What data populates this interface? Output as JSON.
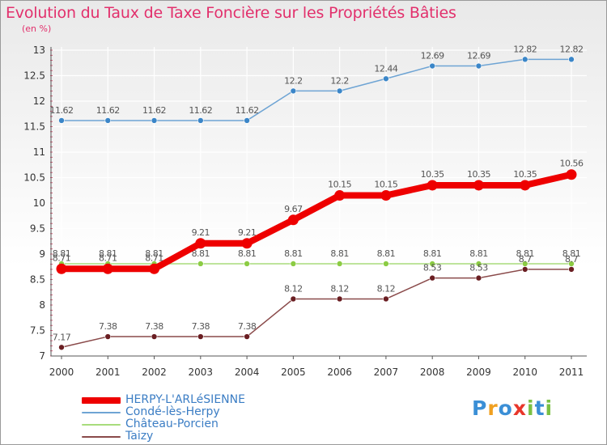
{
  "title": "Evolution du Taux de Taxe Foncière sur les Propriétés Bâties",
  "unit": "(en %)",
  "colors": {
    "title": "#e2306c",
    "axis_text": "#333333",
    "grid": "#ffffff",
    "axis": "#555555",
    "tick_minor": "#cc3355"
  },
  "chart_data": {
    "type": "line",
    "x": [
      "2000",
      "2001",
      "2002",
      "2003",
      "2004",
      "2005",
      "2006",
      "2007",
      "2008",
      "2009",
      "2010",
      "2011"
    ],
    "ylim": [
      7,
      13
    ],
    "yticks": [
      "7",
      "7.5",
      "8",
      "8.5",
      "9",
      "9.5",
      "10",
      "10.5",
      "11",
      "11.5",
      "12",
      "12.5",
      "13"
    ],
    "grid": true,
    "legend_position": "bottom-left",
    "series": [
      {
        "name": "HERPY-L'ARLéSIENNE",
        "color": "#ee0000",
        "width": 8,
        "values": [
          8.71,
          8.71,
          8.71,
          9.21,
          9.21,
          9.67,
          10.15,
          10.15,
          10.35,
          10.35,
          10.35,
          10.56
        ],
        "labels": [
          "8.71",
          "8.71",
          "8.71",
          "9.21",
          "9.21",
          "9.67",
          "10.15",
          "10.15",
          "10.35",
          "10.35",
          "10.35",
          "10.56"
        ]
      },
      {
        "name": "Condé-lès-Herpy",
        "color": "#6ea4d4",
        "point": "#3b86c8",
        "width": 1.5,
        "values": [
          11.62,
          11.62,
          11.62,
          11.62,
          11.62,
          12.2,
          12.2,
          12.44,
          12.69,
          12.69,
          12.82,
          12.82
        ],
        "labels": [
          "11.62",
          "11.62",
          "11.62",
          "11.62",
          "11.62",
          "12.2",
          "12.2",
          "12.44",
          "12.69",
          "12.69",
          "12.82",
          "12.82"
        ]
      },
      {
        "name": "Château-Porcien",
        "color": "#a8dc7c",
        "point": "#8ccc44",
        "width": 1.5,
        "values": [
          8.81,
          8.81,
          8.81,
          8.81,
          8.81,
          8.81,
          8.81,
          8.81,
          8.81,
          8.81,
          8.81,
          8.81
        ],
        "labels": [
          "8.81",
          "8.81",
          "8.81",
          "8.81",
          "8.81",
          "8.81",
          "8.81",
          "8.81",
          "8.81",
          "8.81",
          "8.81",
          "8.81"
        ]
      },
      {
        "name": "Taizy",
        "color": "#8a4a4a",
        "point": "#6a1e22",
        "width": 1.5,
        "values": [
          7.17,
          7.38,
          7.38,
          7.38,
          7.38,
          8.12,
          8.12,
          8.12,
          8.53,
          8.53,
          8.7,
          8.7
        ],
        "labels": [
          "7.17",
          "7.38",
          "7.38",
          "7.38",
          "7.38",
          "8.12",
          "8.12",
          "8.12",
          "8.53",
          "8.53",
          "8.7",
          "8.7"
        ]
      }
    ]
  },
  "legend": {
    "items": [
      {
        "label": "HERPY-L'ARLéSIENNE",
        "color": "#ee0000"
      },
      {
        "label": "Condé-lès-Herpy",
        "color": "#6ea4d4"
      },
      {
        "label": "Château-Porcien",
        "color": "#a8dc7c"
      },
      {
        "label": "Taizy",
        "color": "#8a4a4a"
      }
    ]
  },
  "brand": {
    "text": "Proxiti",
    "letters": [
      {
        "ch": "P",
        "color": "#3b8fd6"
      },
      {
        "ch": "r",
        "color": "#f0a020"
      },
      {
        "ch": "o",
        "color": "#3b8fd6"
      },
      {
        "ch": "x",
        "color": "#e8362a"
      },
      {
        "ch": "i",
        "color": "#7bc043"
      },
      {
        "ch": "t",
        "color": "#3b8fd6"
      },
      {
        "ch": "i",
        "color": "#7bc043"
      }
    ]
  }
}
